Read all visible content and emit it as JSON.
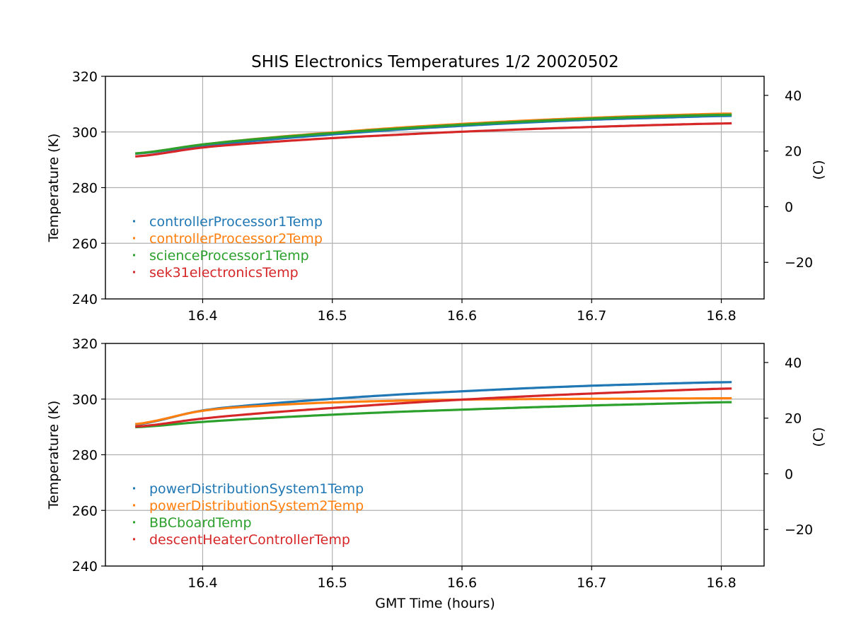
{
  "chart_data": [
    {
      "type": "line",
      "title": "SHIS Electronics Temperatures 1/2 20020502",
      "xlabel": "",
      "ylabel": "Temperature (K)",
      "ylabel_right": "(C)",
      "xlim": [
        16.325,
        16.833
      ],
      "ylim": [
        240,
        320
      ],
      "xticks": [
        16.4,
        16.5,
        16.6,
        16.7,
        16.8
      ],
      "xtick_labels": [
        "16.4",
        "16.5",
        "16.6",
        "16.7",
        "16.8"
      ],
      "yticks": [
        240,
        260,
        280,
        300,
        320
      ],
      "ytick_labels": [
        "240",
        "260",
        "280",
        "300",
        "320"
      ],
      "yticks_right": [
        -20,
        0,
        20,
        40
      ],
      "ytick_labels_right": [
        "−20",
        "0",
        "20",
        "40"
      ],
      "grid": true,
      "legend": "lower-left",
      "series": [
        {
          "name": "controllerProcessor1Temp",
          "color": "#1f77b4",
          "x": [
            16.348,
            16.4,
            16.45,
            16.5,
            16.55,
            16.6,
            16.65,
            16.7,
            16.75,
            16.808
          ],
          "y": [
            292.2,
            295.0,
            297.2,
            299.1,
            300.8,
            302.2,
            303.4,
            304.4,
            305.1,
            305.8
          ]
        },
        {
          "name": "controllerProcessor2Temp",
          "color": "#ff7f0e",
          "x": [
            16.348,
            16.4,
            16.45,
            16.5,
            16.55,
            16.6,
            16.65,
            16.7,
            16.75,
            16.808
          ],
          "y": [
            292.3,
            295.5,
            297.9,
            299.8,
            301.5,
            302.9,
            304.1,
            305.1,
            305.9,
            306.6
          ]
        },
        {
          "name": "scienceProcessor1Temp",
          "color": "#2ca02c",
          "x": [
            16.348,
            16.4,
            16.45,
            16.5,
            16.55,
            16.6,
            16.65,
            16.7,
            16.75,
            16.808
          ],
          "y": [
            292.3,
            295.5,
            297.8,
            299.6,
            301.2,
            302.6,
            303.8,
            304.8,
            305.6,
            306.2
          ]
        },
        {
          "name": "sek31electronicsTemp",
          "color": "#d62728",
          "x": [
            16.348,
            16.4,
            16.45,
            16.5,
            16.55,
            16.6,
            16.65,
            16.7,
            16.75,
            16.808
          ],
          "y": [
            291.2,
            294.4,
            296.3,
            297.8,
            299.0,
            300.1,
            301.0,
            301.8,
            302.5,
            303.1
          ]
        }
      ]
    },
    {
      "type": "line",
      "title": "",
      "xlabel": "GMT Time (hours)",
      "ylabel": "Temperature (K)",
      "ylabel_right": "(C)",
      "xlim": [
        16.325,
        16.833
      ],
      "ylim": [
        240,
        320
      ],
      "xticks": [
        16.4,
        16.5,
        16.6,
        16.7,
        16.8
      ],
      "xtick_labels": [
        "16.4",
        "16.5",
        "16.6",
        "16.7",
        "16.8"
      ],
      "yticks": [
        240,
        260,
        280,
        300,
        320
      ],
      "ytick_labels": [
        "240",
        "260",
        "280",
        "300",
        "320"
      ],
      "yticks_right": [
        -20,
        0,
        20,
        40
      ],
      "ytick_labels_right": [
        "−20",
        "0",
        "20",
        "40"
      ],
      "grid": true,
      "legend": "lower-left",
      "series": [
        {
          "name": "powerDistributionSystem1Temp",
          "color": "#1f77b4",
          "x": [
            16.348,
            16.4,
            16.45,
            16.5,
            16.55,
            16.6,
            16.65,
            16.7,
            16.75,
            16.808
          ],
          "y": [
            290.8,
            295.9,
            298.3,
            300.1,
            301.6,
            302.8,
            303.9,
            304.8,
            305.5,
            306.1
          ]
        },
        {
          "name": "powerDistributionSystem2Temp",
          "color": "#ff7f0e",
          "x": [
            16.348,
            16.4,
            16.45,
            16.5,
            16.55,
            16.6,
            16.65,
            16.7,
            16.75,
            16.808
          ],
          "y": [
            291.0,
            295.8,
            297.7,
            298.8,
            299.4,
            299.8,
            300.0,
            300.1,
            300.2,
            300.3
          ]
        },
        {
          "name": "BBCboardTemp",
          "color": "#2ca02c",
          "x": [
            16.348,
            16.4,
            16.45,
            16.5,
            16.55,
            16.6,
            16.65,
            16.7,
            16.75,
            16.808
          ],
          "y": [
            289.9,
            291.8,
            293.2,
            294.4,
            295.4,
            296.2,
            297.0,
            297.7,
            298.3,
            298.9
          ]
        },
        {
          "name": "descentHeaterControllerTemp",
          "color": "#d62728",
          "x": [
            16.348,
            16.4,
            16.45,
            16.5,
            16.55,
            16.6,
            16.65,
            16.7,
            16.75,
            16.808
          ],
          "y": [
            290.1,
            293.0,
            295.1,
            296.8,
            298.4,
            299.8,
            301.0,
            302.0,
            302.9,
            303.8
          ]
        }
      ]
    }
  ]
}
